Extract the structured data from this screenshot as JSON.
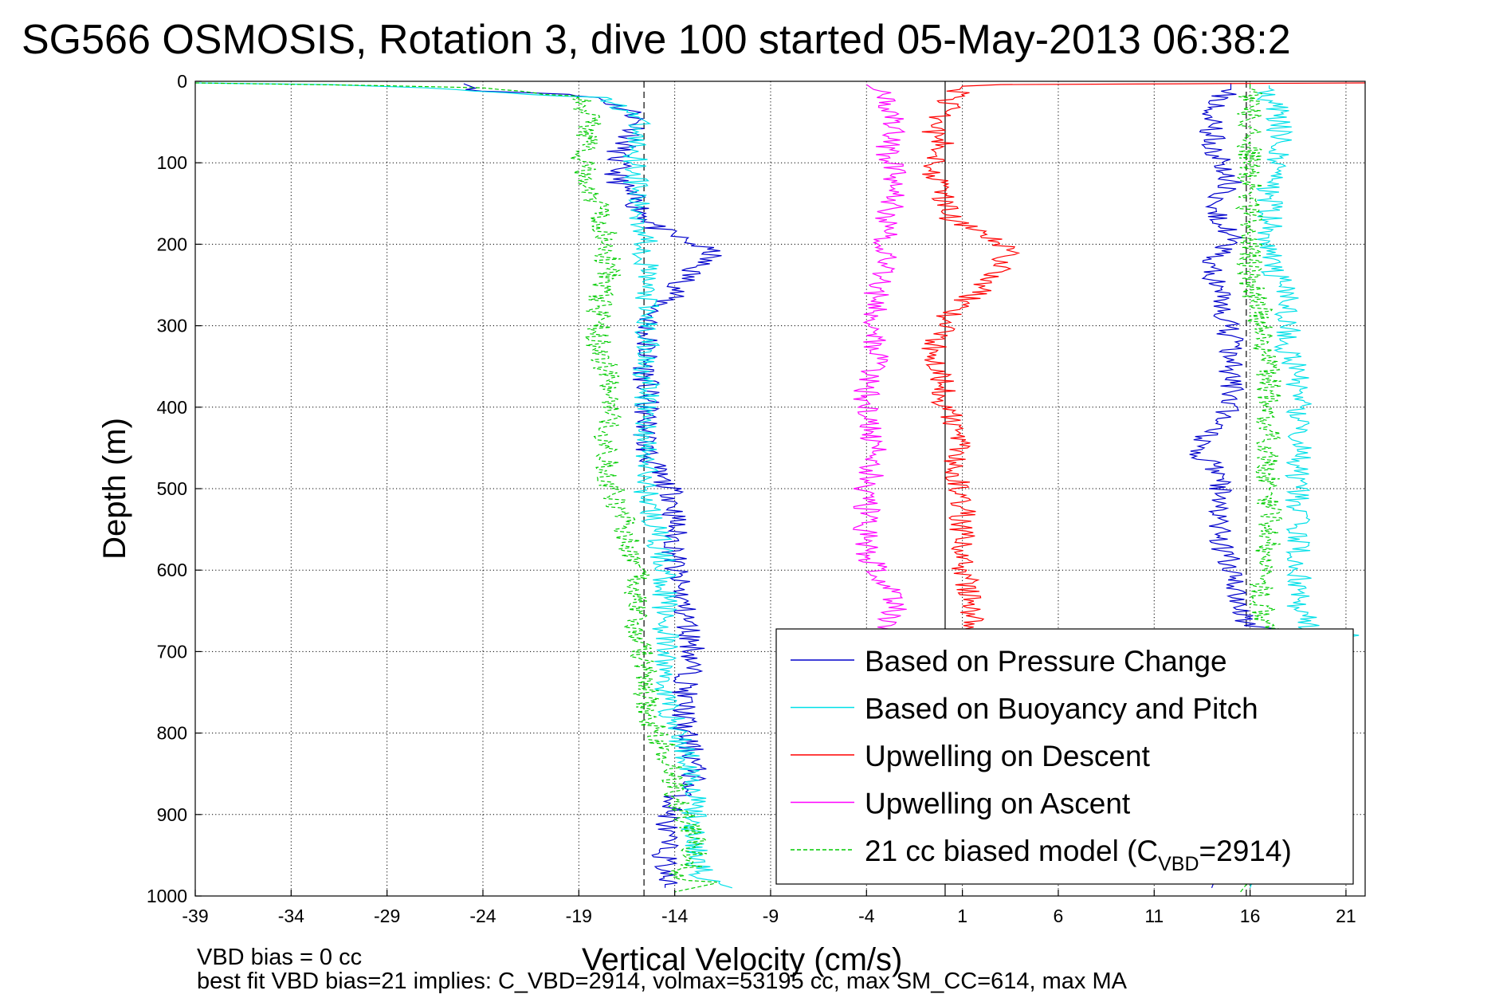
{
  "chart_data": {
    "type": "line",
    "title": "SG566 OSMOSIS, Rotation 3, dive 100 started 05-May-2013 06:38:2",
    "xlabel": "Vertical Velocity (cm/s)",
    "ylabel": "Depth (m)",
    "xlim": [
      -39,
      22
    ],
    "ylim": [
      0,
      1000
    ],
    "y_reversed": true,
    "xticks": [
      -39,
      -34,
      -29,
      -24,
      -19,
      -14,
      -9,
      -4,
      1,
      6,
      11,
      16,
      21
    ],
    "yticks": [
      0,
      100,
      200,
      300,
      400,
      500,
      600,
      700,
      800,
      900,
      1000
    ],
    "grid": true,
    "legend_position": "bottom-right",
    "reference_lines": {
      "dashed_x": [
        -15.6,
        15.8
      ],
      "solid_x": [
        0.1
      ]
    },
    "series": [
      {
        "name": "Based on Pressure Change",
        "color": "#0000cc",
        "style": "solid",
        "descent": [
          [
            -25,
            3
          ],
          [
            -24,
            12
          ],
          [
            -21,
            14
          ],
          [
            -18,
            20
          ],
          [
            -16,
            40
          ],
          [
            -16,
            60
          ],
          [
            -17,
            90
          ],
          [
            -17,
            120
          ],
          [
            -16,
            150
          ],
          [
            -15,
            180
          ],
          [
            -13,
            200
          ],
          [
            -12,
            210
          ],
          [
            -13,
            230
          ],
          [
            -14,
            260
          ],
          [
            -15,
            280
          ],
          [
            -15.5,
            300
          ],
          [
            -15.5,
            350
          ],
          [
            -15.5,
            400
          ],
          [
            -15.5,
            450
          ],
          [
            -15,
            480
          ],
          [
            -14,
            510
          ],
          [
            -14,
            550
          ],
          [
            -14,
            600
          ],
          [
            -13.5,
            650
          ],
          [
            -13,
            700
          ],
          [
            -13.5,
            750
          ],
          [
            -13.5,
            800
          ],
          [
            -13,
            830
          ],
          [
            -13,
            860
          ],
          [
            -14,
            880
          ],
          [
            -14.5,
            920
          ],
          [
            -14.5,
            960
          ],
          [
            -14.5,
            990
          ]
        ],
        "ascent": [
          [
            14,
            990
          ],
          [
            14.5,
            960
          ],
          [
            15,
            900
          ],
          [
            15.5,
            860
          ],
          [
            16,
            820
          ],
          [
            16,
            760
          ],
          [
            16,
            700
          ],
          [
            16.5,
            680
          ],
          [
            18,
            676
          ],
          [
            16,
            670
          ],
          [
            15.5,
            640
          ],
          [
            15,
            600
          ],
          [
            14.5,
            560
          ],
          [
            14.5,
            520
          ],
          [
            14.5,
            480
          ],
          [
            13.5,
            460
          ],
          [
            13.5,
            440
          ],
          [
            14.5,
            420
          ],
          [
            15,
            400
          ],
          [
            15,
            360
          ],
          [
            15,
            320
          ],
          [
            14.5,
            280
          ],
          [
            14,
            240
          ],
          [
            14,
            220
          ],
          [
            15,
            200
          ],
          [
            15,
            180
          ],
          [
            14,
            160
          ],
          [
            14.5,
            140
          ],
          [
            15,
            120
          ],
          [
            14.5,
            100
          ],
          [
            14,
            80
          ],
          [
            14,
            60
          ],
          [
            14,
            40
          ],
          [
            14.5,
            20
          ],
          [
            15,
            10
          ],
          [
            15,
            2
          ]
        ]
      },
      {
        "name": "Based on Buoyancy and Pitch",
        "color": "#00e0e8",
        "style": "solid",
        "descent": [
          [
            -39,
            2
          ],
          [
            -32,
            4
          ],
          [
            -27,
            8
          ],
          [
            -18,
            20
          ],
          [
            -16,
            40
          ],
          [
            -16,
            60
          ],
          [
            -16,
            90
          ],
          [
            -16,
            120
          ],
          [
            -16,
            150
          ],
          [
            -15.5,
            190
          ],
          [
            -15.5,
            210
          ],
          [
            -15.5,
            240
          ],
          [
            -15.5,
            280
          ],
          [
            -15.5,
            320
          ],
          [
            -15.5,
            360
          ],
          [
            -15.5,
            400
          ],
          [
            -15.5,
            450
          ],
          [
            -15.5,
            500
          ],
          [
            -15,
            550
          ],
          [
            -14.5,
            600
          ],
          [
            -14.5,
            650
          ],
          [
            -14.5,
            700
          ],
          [
            -14.5,
            750
          ],
          [
            -14,
            790
          ],
          [
            -13.5,
            820
          ],
          [
            -13,
            850
          ],
          [
            -13,
            880
          ],
          [
            -13,
            910
          ],
          [
            -13,
            940
          ],
          [
            -12.5,
            980
          ],
          [
            -11,
            990
          ]
        ],
        "ascent": [
          [
            16,
            990
          ],
          [
            16.5,
            960
          ],
          [
            18,
            900
          ],
          [
            19,
            860
          ],
          [
            19.5,
            820
          ],
          [
            19.5,
            760
          ],
          [
            19,
            700
          ],
          [
            20,
            690
          ],
          [
            21,
            680
          ],
          [
            19,
            670
          ],
          [
            18.5,
            640
          ],
          [
            18.5,
            600
          ],
          [
            18.5,
            560
          ],
          [
            18.5,
            520
          ],
          [
            18.5,
            480
          ],
          [
            18.5,
            440
          ],
          [
            18.5,
            400
          ],
          [
            18.5,
            360
          ],
          [
            18,
            330
          ],
          [
            18,
            300
          ],
          [
            18,
            260
          ],
          [
            17,
            230
          ],
          [
            17,
            200
          ],
          [
            17,
            180
          ],
          [
            17,
            150
          ],
          [
            17,
            120
          ],
          [
            17.5,
            100
          ],
          [
            17.5,
            70
          ],
          [
            17.5,
            40
          ],
          [
            17,
            20
          ],
          [
            17,
            5
          ]
        ]
      },
      {
        "name": "Upwelling on Descent",
        "color": "#ff0000",
        "style": "solid",
        "descent": [
          [
            22,
            2
          ],
          [
            3,
            4
          ],
          [
            1,
            6
          ],
          [
            0.5,
            20
          ],
          [
            0,
            40
          ],
          [
            -0.5,
            60
          ],
          [
            0,
            80
          ],
          [
            -0.5,
            110
          ],
          [
            0,
            140
          ],
          [
            0.5,
            170
          ],
          [
            2,
            190
          ],
          [
            3.5,
            205
          ],
          [
            3,
            230
          ],
          [
            2,
            255
          ],
          [
            0.5,
            280
          ],
          [
            0,
            300
          ],
          [
            -0.5,
            330
          ],
          [
            0,
            360
          ],
          [
            0,
            390
          ],
          [
            0.5,
            420
          ],
          [
            1,
            450
          ],
          [
            0.5,
            480
          ],
          [
            1,
            510
          ],
          [
            1,
            550
          ],
          [
            1,
            600
          ],
          [
            1.5,
            640
          ],
          [
            1.5,
            670
          ],
          [
            1.5,
            700
          ]
        ]
      },
      {
        "name": "Upwelling on Ascent",
        "color": "#ff00ff",
        "style": "solid",
        "ascent": [
          [
            -4,
            4
          ],
          [
            -3,
            20
          ],
          [
            -2.5,
            50
          ],
          [
            -3,
            80
          ],
          [
            -2.5,
            110
          ],
          [
            -2.5,
            140
          ],
          [
            -3,
            170
          ],
          [
            -3,
            200
          ],
          [
            -3,
            230
          ],
          [
            -3.5,
            260
          ],
          [
            -3.5,
            300
          ],
          [
            -3.5,
            340
          ],
          [
            -4,
            380
          ],
          [
            -4,
            420
          ],
          [
            -3.5,
            460
          ],
          [
            -4,
            500
          ],
          [
            -4,
            540
          ],
          [
            -4,
            580
          ],
          [
            -3,
            620
          ],
          [
            -2.5,
            650
          ],
          [
            -3,
            680
          ],
          [
            -3,
            700
          ]
        ]
      },
      {
        "name": "21 cc biased model (C_VBD=2914)",
        "legend_label": "21 cc biased model (C",
        "legend_subscript": "VBD",
        "legend_suffix": "=2914)",
        "color": "#00cc00",
        "style": "dashed",
        "descent": [
          [
            -39,
            2
          ],
          [
            -30,
            5
          ],
          [
            -24,
            8
          ],
          [
            -19,
            20
          ],
          [
            -18.5,
            40
          ],
          [
            -18.5,
            70
          ],
          [
            -19,
            90
          ],
          [
            -18.5,
            120
          ],
          [
            -18,
            150
          ],
          [
            -17.5,
            190
          ],
          [
            -17.5,
            210
          ],
          [
            -17.5,
            240
          ],
          [
            -18,
            280
          ],
          [
            -18,
            320
          ],
          [
            -17.5,
            360
          ],
          [
            -17.5,
            400
          ],
          [
            -17.5,
            440
          ],
          [
            -17.5,
            480
          ],
          [
            -17,
            520
          ],
          [
            -16.5,
            560
          ],
          [
            -16,
            600
          ],
          [
            -16,
            640
          ],
          [
            -16,
            680
          ],
          [
            -15.5,
            720
          ],
          [
            -15.5,
            760
          ],
          [
            -15,
            800
          ],
          [
            -14.5,
            820
          ],
          [
            -14,
            850
          ],
          [
            -14,
            880
          ],
          [
            -13.5,
            900
          ],
          [
            -13,
            920
          ],
          [
            -13,
            960
          ],
          [
            -14,
            975
          ],
          [
            -12,
            985
          ],
          [
            -14,
            995
          ]
        ],
        "ascent": [
          [
            15.5,
            995
          ],
          [
            16,
            980
          ],
          [
            17,
            960
          ],
          [
            17,
            920
          ],
          [
            17,
            880
          ],
          [
            17,
            840
          ],
          [
            17.5,
            800
          ],
          [
            17.5,
            760
          ],
          [
            17.5,
            720
          ],
          [
            18,
            700
          ],
          [
            19,
            690
          ],
          [
            17,
            670
          ],
          [
            16.5,
            640
          ],
          [
            16.5,
            600
          ],
          [
            17,
            560
          ],
          [
            17,
            520
          ],
          [
            17,
            480
          ],
          [
            17,
            440
          ],
          [
            17,
            400
          ],
          [
            17,
            360
          ],
          [
            16.5,
            320
          ],
          [
            16.5,
            280
          ],
          [
            16,
            250
          ],
          [
            16,
            220
          ],
          [
            16,
            190
          ],
          [
            16,
            160
          ],
          [
            16,
            130
          ],
          [
            16,
            100
          ],
          [
            16,
            70
          ],
          [
            16,
            40
          ],
          [
            16,
            15
          ],
          [
            16,
            3
          ]
        ]
      }
    ],
    "annotations": [
      "VBD bias = 0 cc",
      "best fit VBD bias=21 implies: C_VBD=2914, volmax=53195 cc, max SM_CC=614, max MA"
    ]
  }
}
